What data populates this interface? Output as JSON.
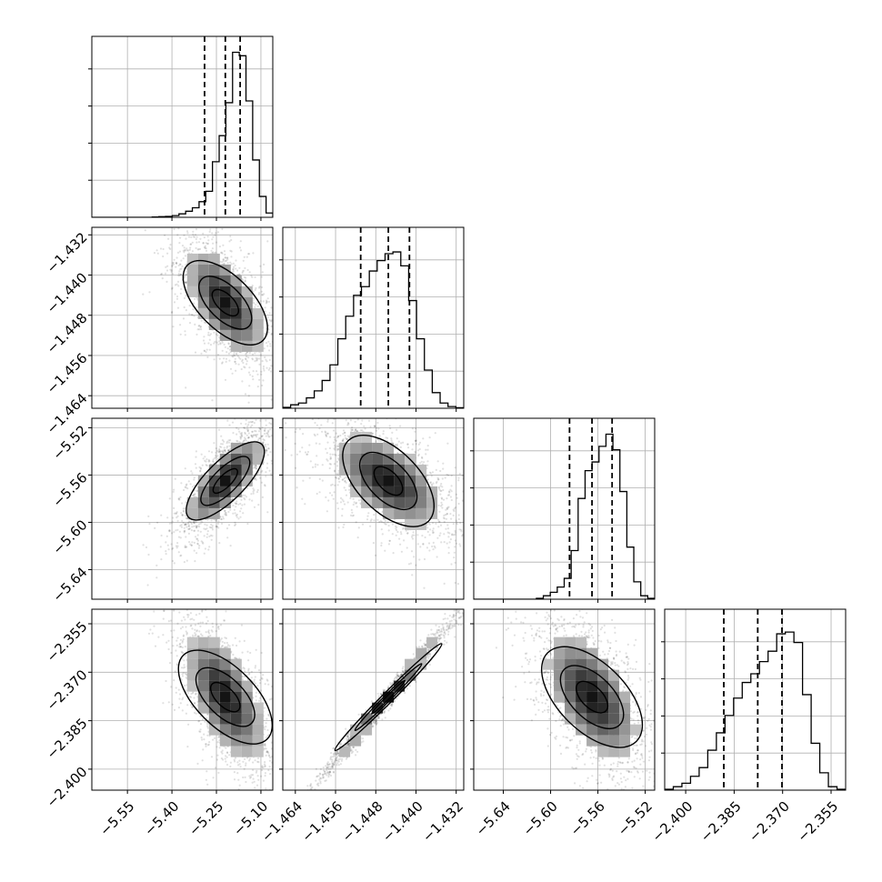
{
  "chart_data": {
    "type": "corner",
    "grid": true,
    "parameters": [
      {
        "range": [
          -5.67,
          -5.06
        ],
        "ticks": [
          -5.55,
          -5.4,
          -5.25,
          -5.1
        ],
        "tick_labels": [
          "−5.55",
          "−5.40",
          "−5.25",
          "−5.10"
        ],
        "quantiles": [
          -5.29,
          -5.22,
          -5.17
        ],
        "hist": [
          0,
          0,
          0,
          0,
          0,
          0,
          0,
          0,
          0,
          0.002,
          0.004,
          0.005,
          0.01,
          0.02,
          0.035,
          0.055,
          0.09,
          0.15,
          0.32,
          0.47,
          0.66,
          0.95,
          0.93,
          0.67,
          0.33,
          0.12,
          0.025
        ]
      },
      {
        "range": [
          -1.4665,
          -1.4305
        ],
        "ticks": [
          -1.464,
          -1.456,
          -1.448,
          -1.44,
          -1.432
        ],
        "tick_labels": [
          "−1.464",
          "−1.456",
          "−1.448",
          "−1.440",
          "−1.432"
        ],
        "quantiles": [
          -1.451,
          -1.4455,
          -1.4413
        ],
        "hist": [
          0.005,
          0.02,
          0.03,
          0.06,
          0.1,
          0.16,
          0.25,
          0.4,
          0.53,
          0.65,
          0.7,
          0.79,
          0.85,
          0.89,
          0.9,
          0.82,
          0.62,
          0.4,
          0.22,
          0.09,
          0.03,
          0.01,
          0.003
        ]
      },
      {
        "range": [
          -5.665,
          -5.512
        ],
        "ticks": [
          -5.64,
          -5.6,
          -5.56,
          -5.52
        ],
        "tick_labels": [
          "−5.64",
          "−5.60",
          "−5.56",
          "−5.52"
        ],
        "quantiles": [
          -5.584,
          -5.565,
          -5.548
        ],
        "hist": [
          0,
          0,
          0,
          0,
          0,
          0,
          0,
          0,
          0,
          0.005,
          0.02,
          0.04,
          0.07,
          0.12,
          0.28,
          0.58,
          0.74,
          0.79,
          0.88,
          0.95,
          0.86,
          0.62,
          0.3,
          0.1,
          0.02,
          0.005
        ]
      },
      {
        "range": [
          -2.4065,
          -2.3505
        ],
        "ticks": [
          -2.4,
          -2.385,
          -2.37,
          -2.355
        ],
        "tick_labels": [
          "−2.400",
          "−2.385",
          "−2.370",
          "−2.355"
        ],
        "quantiles": [
          -2.3882,
          -2.3777,
          -2.3702
        ],
        "hist": [
          0.005,
          0.02,
          0.04,
          0.08,
          0.13,
          0.23,
          0.33,
          0.43,
          0.53,
          0.62,
          0.67,
          0.74,
          0.8,
          0.9,
          0.91,
          0.85,
          0.55,
          0.27,
          0.1,
          0.02,
          0.005
        ]
      }
    ],
    "correlations": {
      "1-0": -0.6,
      "2-0": 0.75,
      "2-1": -0.55,
      "3-0": -0.6,
      "3-1": 0.99,
      "3-2": -0.55
    }
  }
}
